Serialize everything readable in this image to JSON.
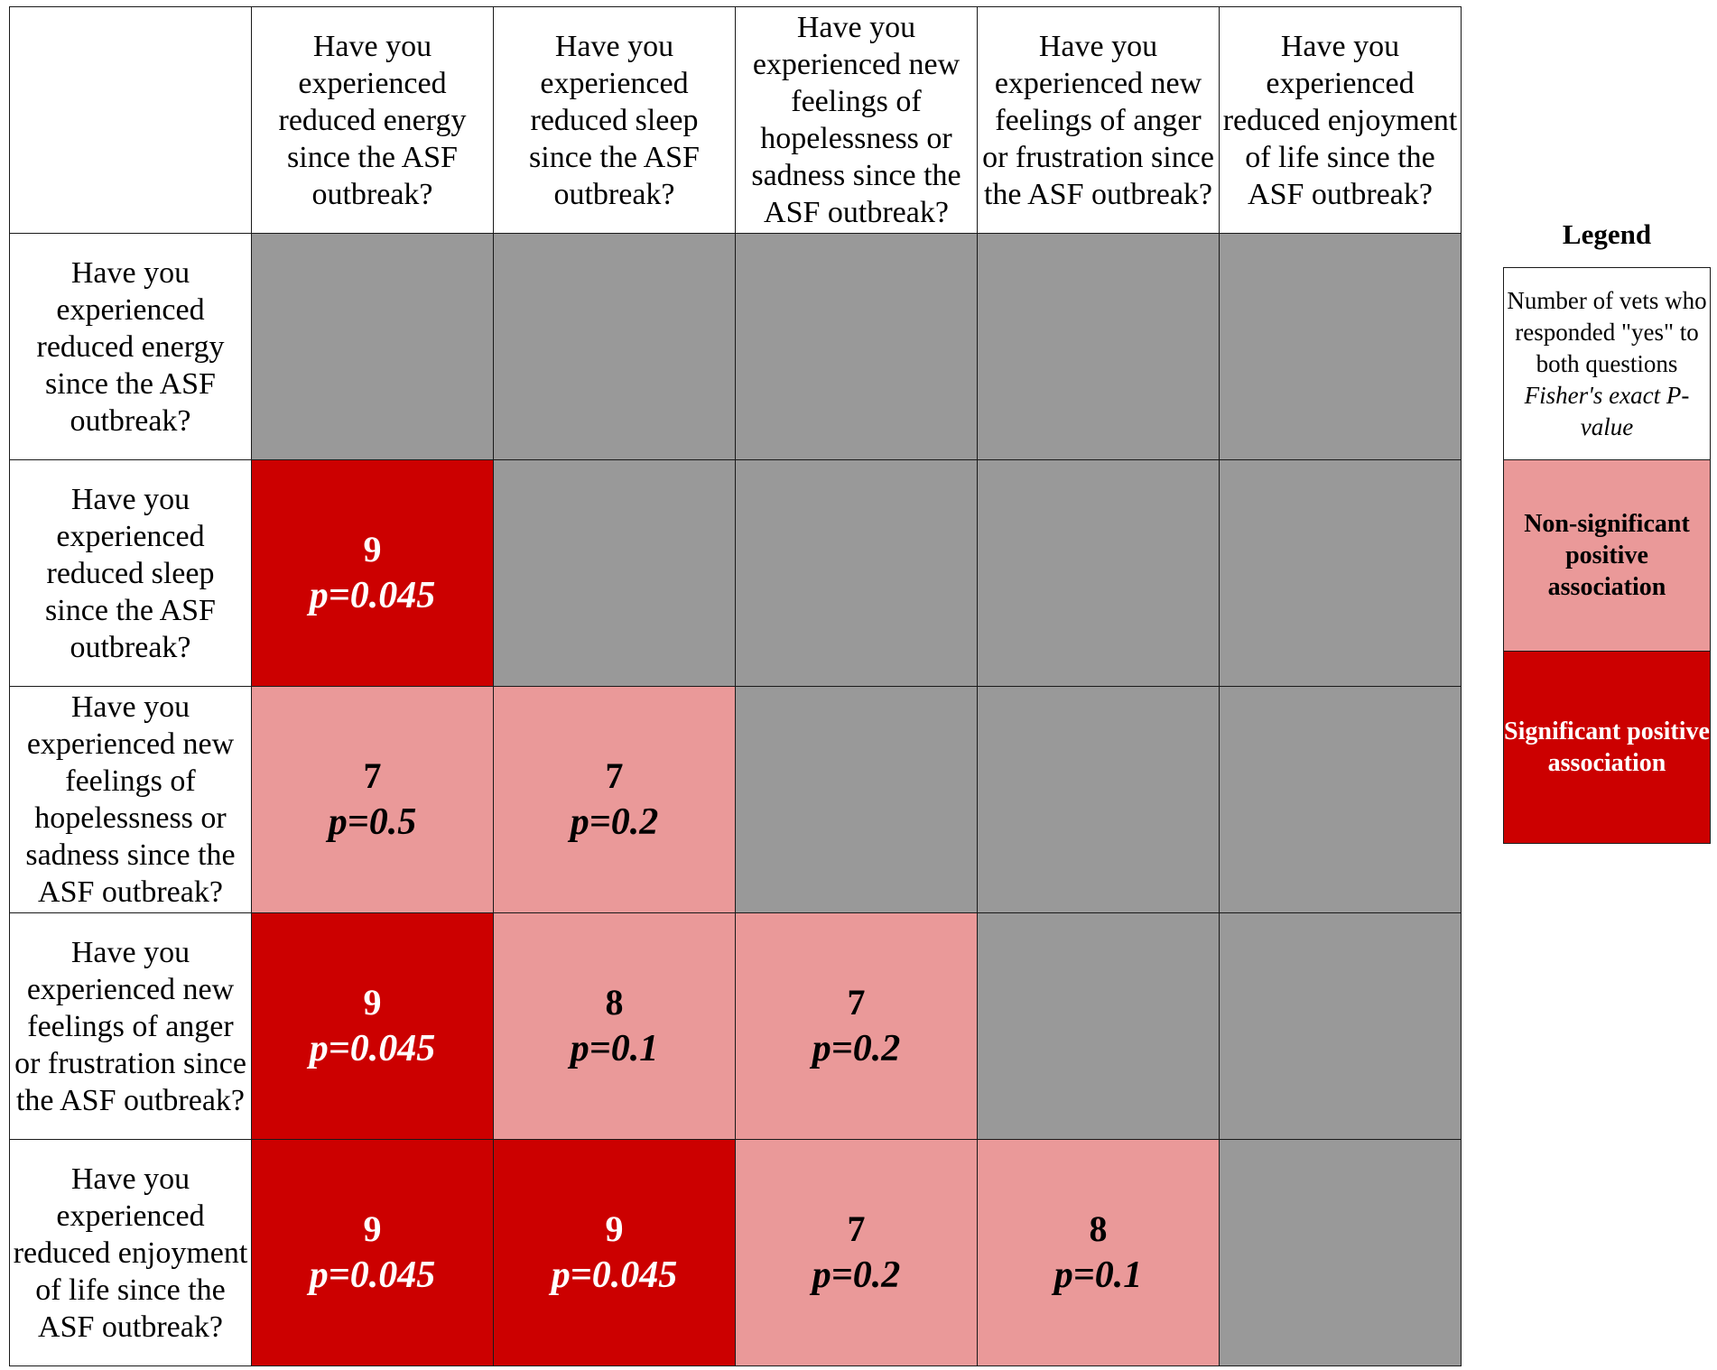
{
  "colors": {
    "significant": "#cc0000",
    "nonsignificant": "#ea9999",
    "diagonal_or_upper": "#999999",
    "header_bg": "#ffffff",
    "significant_text": "#ffffff",
    "nonsignificant_text": "#000000"
  },
  "questions": [
    "Have you experienced reduced energy since the ASF outbreak?",
    "Have you experienced reduced sleep since the ASF outbreak?",
    "Have you experienced new feelings of hopelessness or sadness since the ASF outbreak?",
    "Have you experienced new feelings of anger or frustration since the ASF outbreak?",
    "Have you experienced reduced enjoyment of life since the ASF outbreak?"
  ],
  "legend": {
    "title": "Legend",
    "count_desc": "Number of vets who responded \"yes\" to both questions",
    "p_desc": "Fisher's exact P-value",
    "nonsig_label": "Non-significant positive association",
    "sig_label": "Significant positive association"
  },
  "chart_data": {
    "type": "heatmap",
    "rows": [
      "Have you experienced reduced energy since the ASF outbreak?",
      "Have you experienced reduced sleep since the ASF outbreak?",
      "Have you experienced new feelings of hopelessness or sadness since the ASF outbreak?",
      "Have you experienced new feelings of anger or frustration since the ASF outbreak?",
      "Have you experienced reduced enjoyment of life since the ASF outbreak?"
    ],
    "columns": [
      "Have you experienced reduced energy since the ASF outbreak?",
      "Have you experienced reduced sleep since the ASF outbreak?",
      "Have you experienced new feelings of hopelessness or sadness since the ASF outbreak?",
      "Have you experienced new feelings of anger or frustration since the ASF outbreak?",
      "Have you experienced reduced enjoyment of life since the ASF outbreak?"
    ],
    "cells": [
      {
        "row": 1,
        "col": 0,
        "count": "9",
        "p": "p=0.045",
        "significant": true
      },
      {
        "row": 2,
        "col": 0,
        "count": "7",
        "p": "p=0.5",
        "significant": false
      },
      {
        "row": 2,
        "col": 1,
        "count": "7",
        "p": "p=0.2",
        "significant": false
      },
      {
        "row": 3,
        "col": 0,
        "count": "9",
        "p": "p=0.045",
        "significant": true
      },
      {
        "row": 3,
        "col": 1,
        "count": "8",
        "p": "p=0.1",
        "significant": false
      },
      {
        "row": 3,
        "col": 2,
        "count": "7",
        "p": "p=0.2",
        "significant": false
      },
      {
        "row": 4,
        "col": 0,
        "count": "9",
        "p": "p=0.045",
        "significant": true
      },
      {
        "row": 4,
        "col": 1,
        "count": "9",
        "p": "p=0.045",
        "significant": true
      },
      {
        "row": 4,
        "col": 2,
        "count": "7",
        "p": "p=0.2",
        "significant": false
      },
      {
        "row": 4,
        "col": 3,
        "count": "8",
        "p": "p=0.1",
        "significant": false
      }
    ]
  }
}
